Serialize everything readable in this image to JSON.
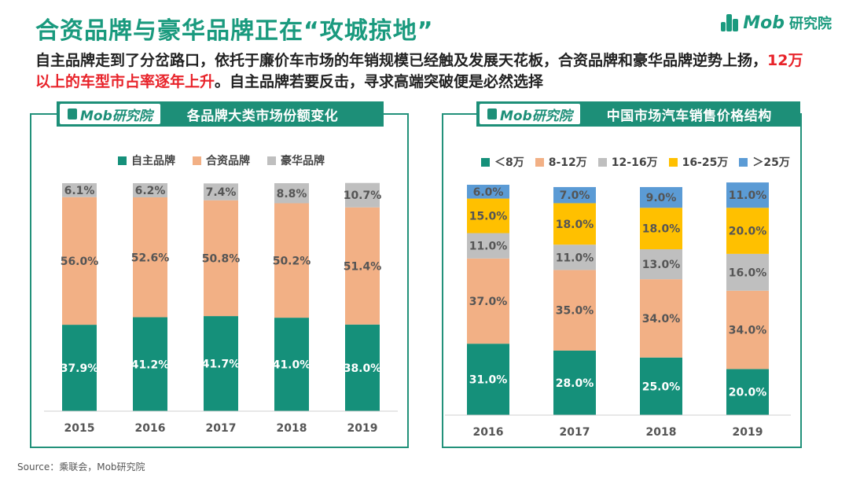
{
  "title": "合资品牌与豪华品牌正在“攻城掠地”",
  "brand": {
    "name": "Mob",
    "suffix": "研究院"
  },
  "subtitle": {
    "part1": "自主品牌走到了分岔路口，依托于廉价车市场的年销规模已经触及发展天花板，合资品牌和豪华品牌逆势上扬，",
    "highlight": "12万以上的车型市占率逐年上升",
    "part2": "。自主品牌若要反击，寻求高端突破便是必然选择"
  },
  "source": "Source：乘联会，Mob研究院",
  "colors": {
    "accent": "#1a9a7e",
    "highlight": "#e8232a"
  },
  "chart_data": [
    {
      "type": "bar",
      "stacked": true,
      "title": "各品牌大类市场份额变化",
      "brand_tag": "Mob研究院",
      "categories": [
        "2015",
        "2016",
        "2017",
        "2018",
        "2019"
      ],
      "legend_position": "top",
      "ylim": [
        0,
        100
      ],
      "grid": false,
      "series": [
        {
          "name": "自主品牌",
          "color": "#15907a",
          "values": [
            37.9,
            41.2,
            41.7,
            41.0,
            38.0
          ],
          "labels": [
            "37.9%",
            "41.2%",
            "41.7%",
            "41.0%",
            "38.0%"
          ]
        },
        {
          "name": "合资品牌",
          "color": "#f2b085",
          "values": [
            56.0,
            52.6,
            50.8,
            50.2,
            51.4
          ],
          "labels": [
            "56.0%",
            "52.6%",
            "50.8%",
            "50.2%",
            "51.4%"
          ]
        },
        {
          "name": "豪华品牌",
          "color": "#bfbfbf",
          "values": [
            6.1,
            6.2,
            7.4,
            8.8,
            10.7
          ],
          "labels": [
            "6.1%",
            "6.2%",
            "7.4%",
            "8.8%",
            "10.7%"
          ]
        }
      ]
    },
    {
      "type": "bar",
      "stacked": true,
      "title": "中国市场汽车销售价格结构",
      "brand_tag": "Mob研究院",
      "categories": [
        "2016",
        "2017",
        "2018",
        "2019"
      ],
      "legend_position": "top",
      "ylim": [
        0,
        100
      ],
      "grid": false,
      "series": [
        {
          "name": "＜8万",
          "color": "#15907a",
          "values": [
            31,
            28,
            25,
            20
          ],
          "labels": [
            "31.0%",
            "28.0%",
            "25.0%",
            "20.0%"
          ]
        },
        {
          "name": "8-12万",
          "color": "#f2b085",
          "values": [
            37,
            35,
            34,
            34
          ],
          "labels": [
            "37.0%",
            "35.0%",
            "34.0%",
            "34.0%"
          ]
        },
        {
          "name": "12-16万",
          "color": "#bfbfbf",
          "values": [
            11,
            11,
            13,
            16
          ],
          "labels": [
            "11.0%",
            "11.0%",
            "13.0%",
            "16.0%"
          ]
        },
        {
          "name": "16-25万",
          "color": "#ffc000",
          "values": [
            15,
            18,
            18,
            20
          ],
          "labels": [
            "15.0%",
            "18.0%",
            "18.0%",
            "20.0%"
          ]
        },
        {
          "name": "＞25万",
          "color": "#5b9bd5",
          "values": [
            6,
            7,
            9,
            11
          ],
          "labels": [
            "6.0%",
            "7.0%",
            "9.0%",
            "11.0%"
          ]
        }
      ]
    }
  ]
}
